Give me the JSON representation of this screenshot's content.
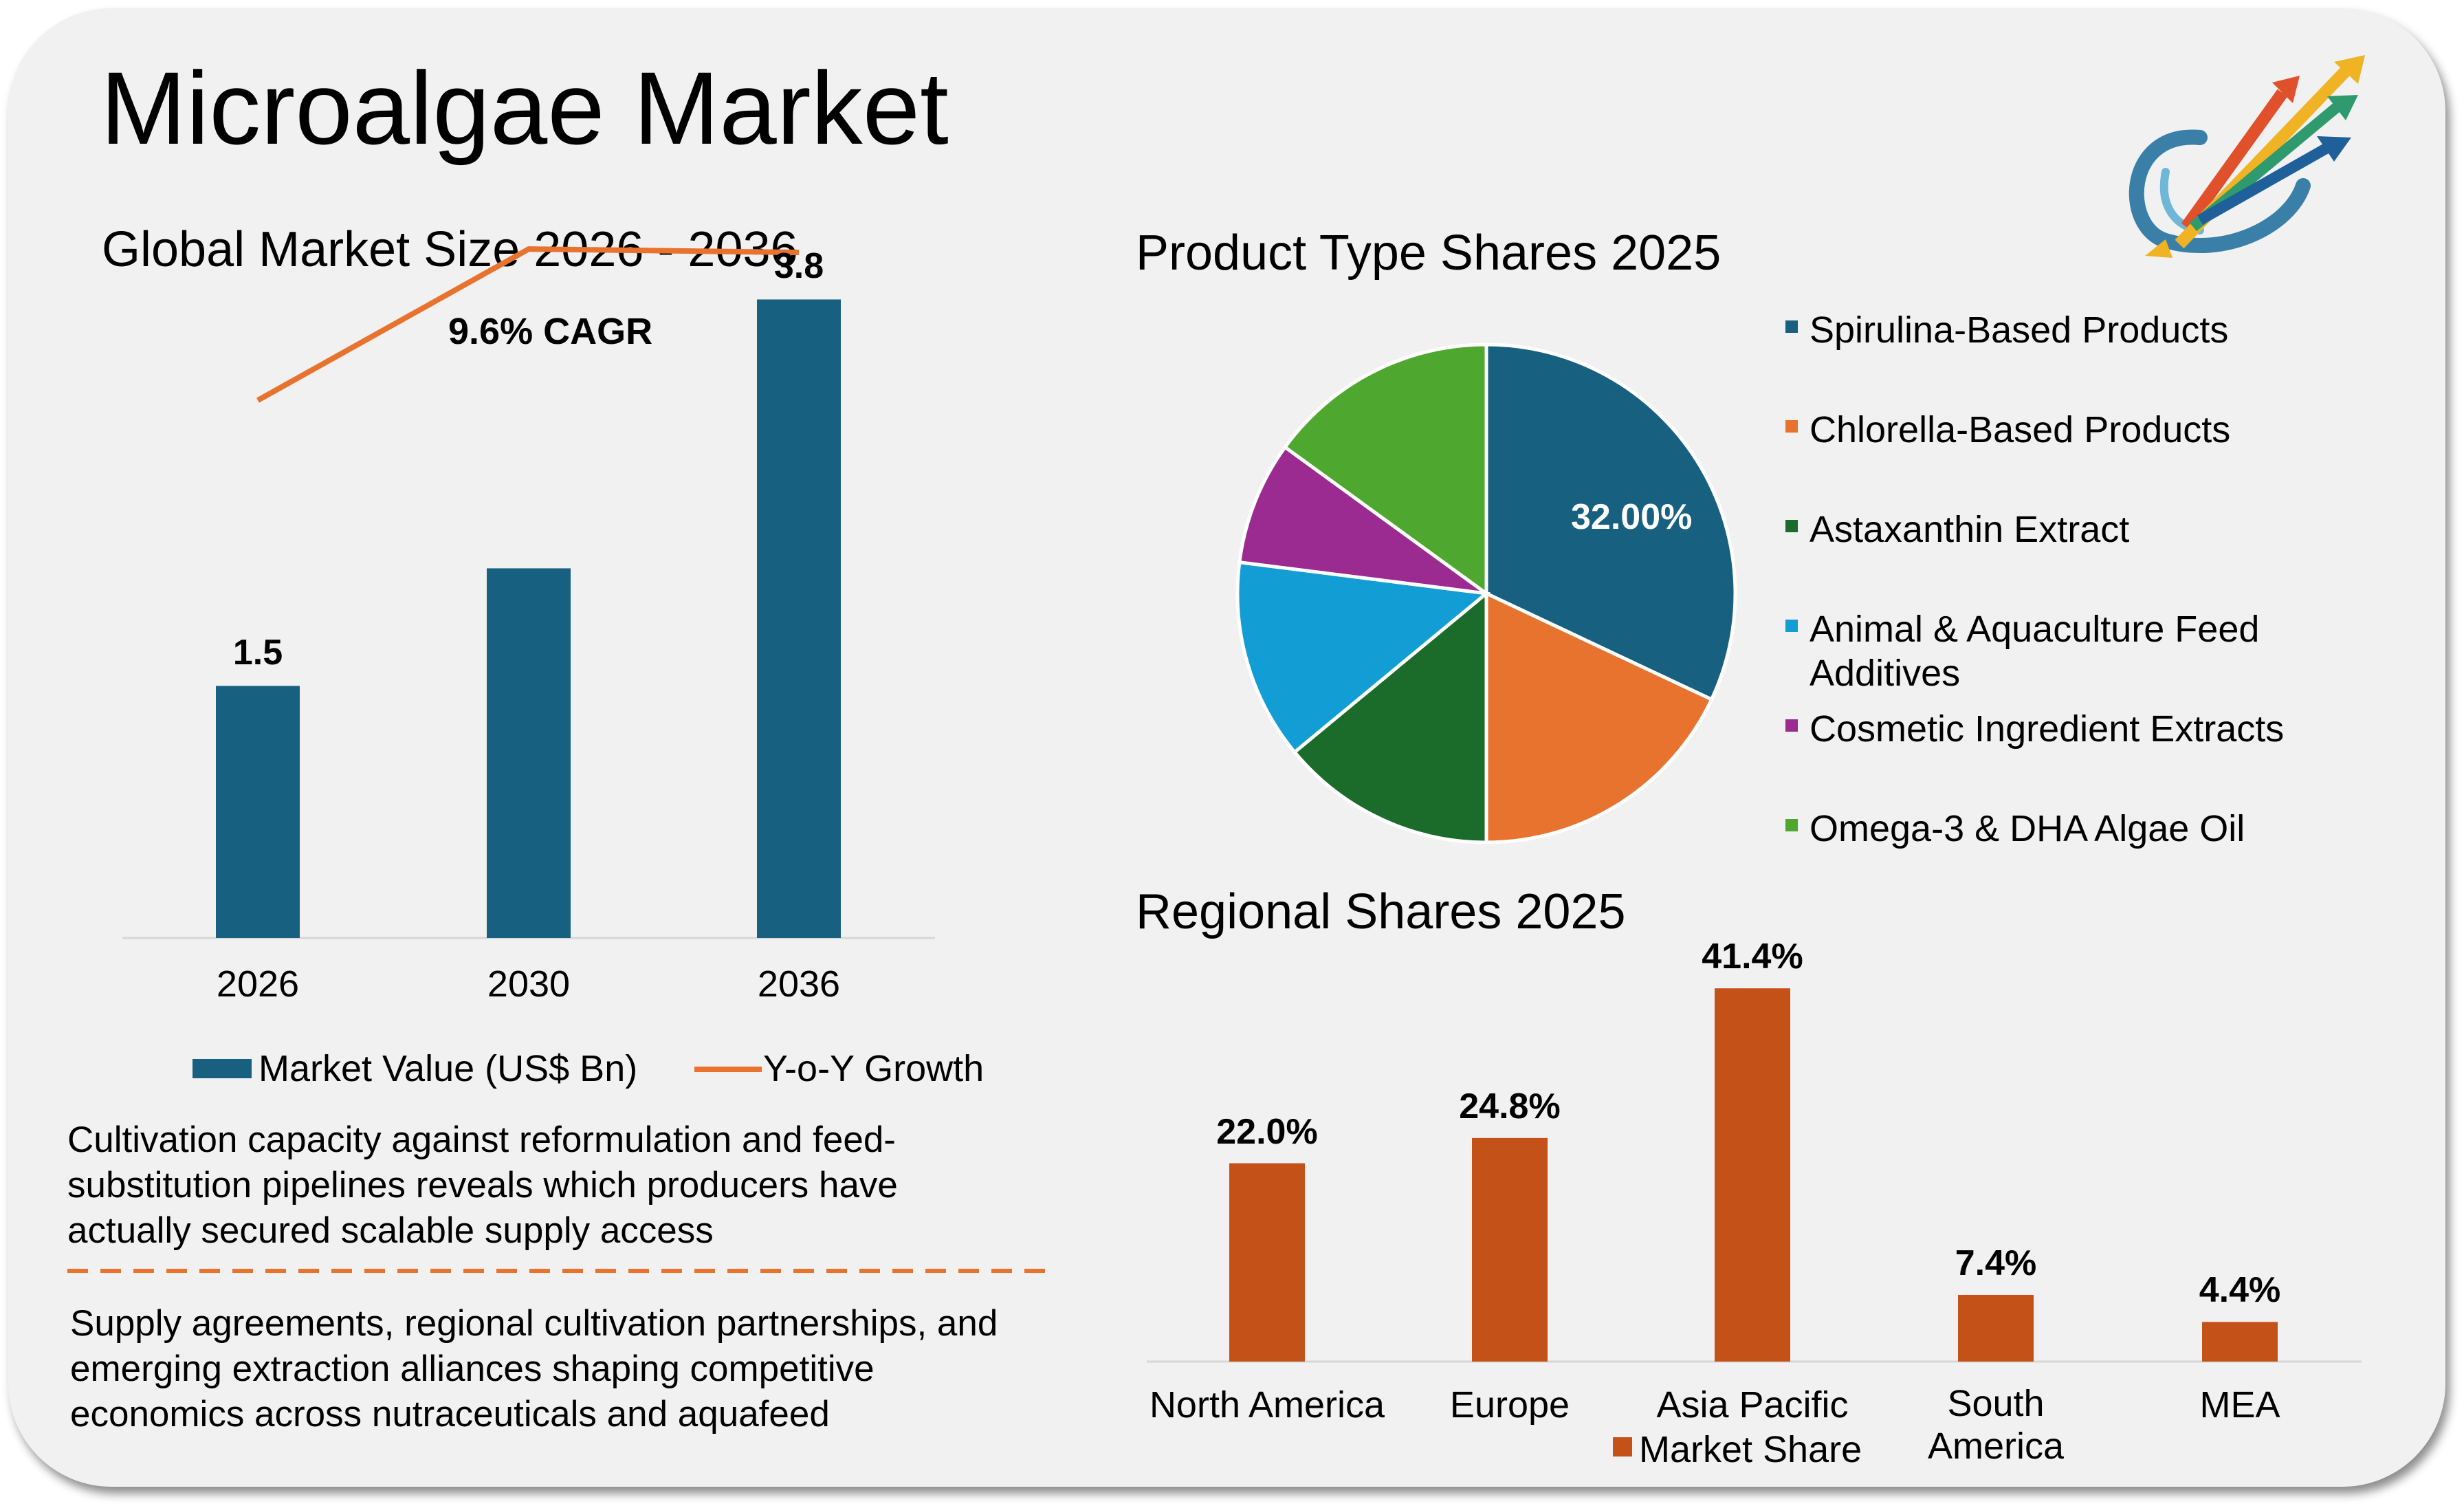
{
  "header": {
    "title": "Microalgae Market"
  },
  "market_section": {
    "title": "Global Market Size 2026 - 2036",
    "cagr_label": "9.6% CAGR",
    "legend": {
      "bar": "Market Value (US$ Bn)",
      "line": "Y-o-Y Growth"
    }
  },
  "product_section": {
    "title": "Product Type Shares 2025",
    "slice_label": "32.00%"
  },
  "regional_section": {
    "title": "Regional Shares 2025",
    "legend": "Market Share"
  },
  "notes": {
    "top": [
      "Cultivation capacity against reformulation and feed-",
      "substitution pipelines reveals which producers have",
      "actually secured scalable supply access"
    ],
    "bottom": [
      "Supply agreements, regional cultivation partnerships, and",
      "emerging extraction alliances shaping competitive",
      "economics across nutraceuticals and aquafeed"
    ]
  },
  "colors": {
    "bar_blue": "#17607f",
    "line_orange": "#e8732f",
    "bar_rust": "#c45218",
    "card_bg": "#f1f1f1"
  },
  "chart_data": [
    {
      "type": "bar",
      "title": "Global Market Size 2026 - 2036",
      "categories": [
        "2026",
        "2030",
        "2036"
      ],
      "series": [
        {
          "name": "Market Value (US$ Bn)",
          "type": "bar",
          "values": [
            1.5,
            2.2,
            3.8
          ],
          "labels": [
            "1.5",
            "",
            "3.8"
          ]
        },
        {
          "name": "Y-o-Y Growth",
          "type": "line",
          "values": [
            3.2,
            4.1,
            4.08
          ]
        }
      ],
      "annotation": "9.6% CAGR",
      "ylim": [
        0,
        4.6
      ],
      "grid": false,
      "legend": "bottom"
    },
    {
      "type": "pie",
      "title": "Product Type Shares 2025",
      "slices": [
        {
          "label": "Spirulina-Based Products",
          "value": 32.0,
          "color": "#17607f",
          "data_label": "32.00%"
        },
        {
          "label": "Chlorella-Based Products",
          "value": 18.0,
          "color": "#e8732f",
          "data_label": ""
        },
        {
          "label": "Astaxanthin Extract",
          "value": 14.0,
          "color": "#1b6b2a",
          "data_label": ""
        },
        {
          "label": "Animal & Aquaculture Feed Additives",
          "value": 13.0,
          "color": "#129dd4",
          "data_label": ""
        },
        {
          "label": "Cosmetic Ingredient Extracts",
          "value": 8.0,
          "color": "#9b2a91",
          "data_label": ""
        },
        {
          "label": "Omega-3 & DHA Algae Oil",
          "value": 15.0,
          "color": "#4ea72e",
          "data_label": ""
        }
      ],
      "legend": "right"
    },
    {
      "type": "bar",
      "title": "Regional Shares 2025",
      "categories": [
        "North America",
        "Europe",
        "Asia Pacific",
        "South America",
        "MEA"
      ],
      "series": [
        {
          "name": "Market Share",
          "values": [
            22.0,
            24.8,
            41.4,
            7.4,
            4.4
          ],
          "labels": [
            "22.0%",
            "24.8%",
            "41.4%",
            "7.4%",
            "4.4%"
          ]
        }
      ],
      "ylim": [
        0,
        45
      ],
      "grid": false,
      "legend": "bottom"
    }
  ]
}
